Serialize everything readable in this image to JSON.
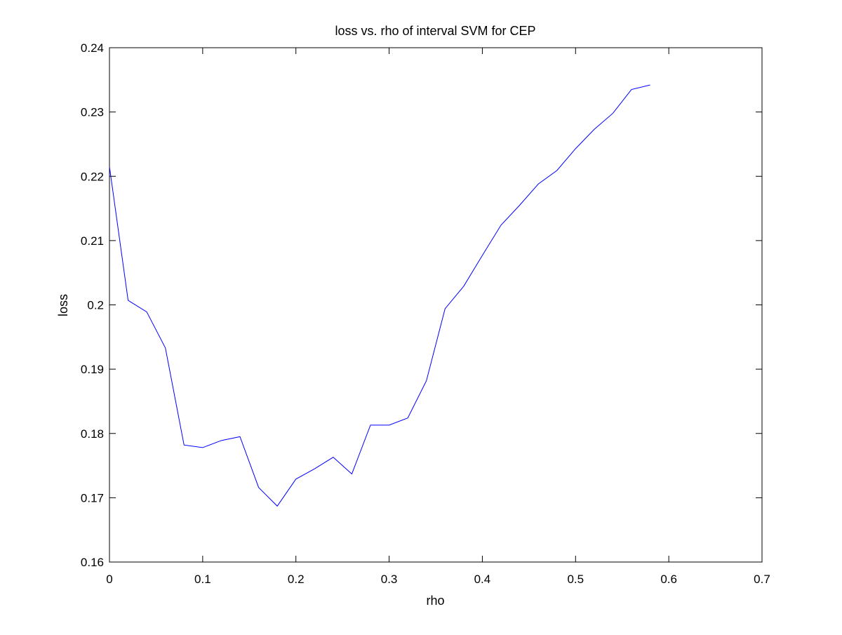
{
  "chart_data": {
    "type": "line",
    "title": "loss vs. rho of interval SVM for CEP",
    "xlabel": "rho",
    "ylabel": "loss",
    "xlim": [
      0,
      0.7
    ],
    "ylim": [
      0.16,
      0.24
    ],
    "x_ticks": [
      "0",
      "0.1",
      "0.2",
      "0.3",
      "0.4",
      "0.5",
      "0.6",
      "0.7"
    ],
    "y_ticks": [
      "0.16",
      "0.17",
      "0.18",
      "0.19",
      "0.2",
      "0.21",
      "0.22",
      "0.23",
      "0.24"
    ],
    "grid": false,
    "legend": "none",
    "series": [
      {
        "color": "#0000ff",
        "x": [
          0,
          0.02,
          0.04,
          0.06,
          0.08,
          0.1,
          0.12,
          0.14,
          0.16,
          0.18,
          0.2,
          0.22,
          0.24,
          0.26,
          0.28,
          0.3,
          0.32,
          0.34,
          0.36,
          0.38,
          0.4,
          0.42,
          0.44,
          0.46,
          0.48,
          0.5,
          0.52,
          0.54,
          0.56,
          0.58
        ],
        "y": [
          0.2215,
          0.2007,
          0.1989,
          0.1933,
          0.1782,
          0.1778,
          0.1789,
          0.1795,
          0.1716,
          0.1687,
          0.1729,
          0.1745,
          0.1763,
          0.1737,
          0.1813,
          0.1813,
          0.1824,
          0.1882,
          0.1994,
          0.2029,
          0.2077,
          0.2124,
          0.2155,
          0.2188,
          0.2209,
          0.2243,
          0.2273,
          0.2298,
          0.2335,
          0.2342
        ]
      }
    ]
  }
}
